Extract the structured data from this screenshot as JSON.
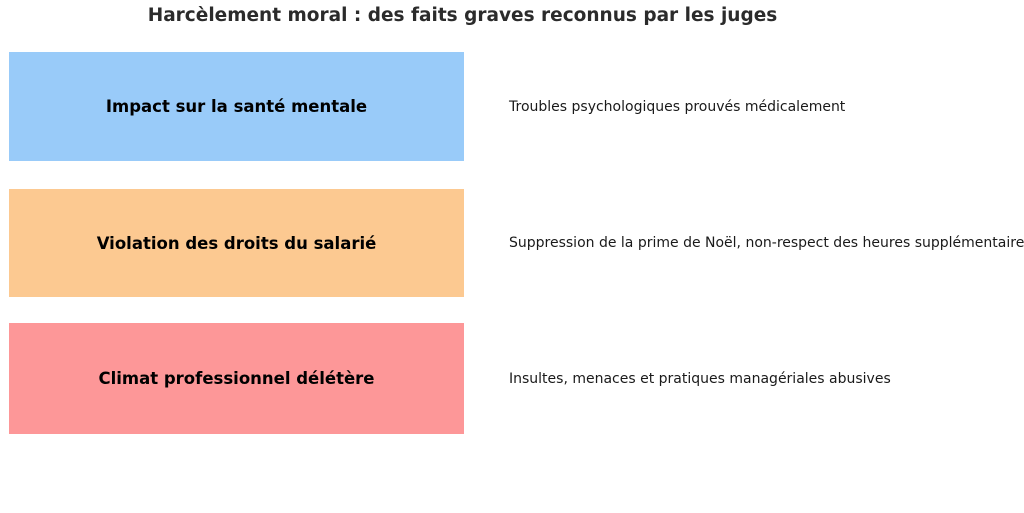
{
  "title": "Harcèlement moral : des faits graves reconnus par les juges",
  "rows": [
    {
      "label": "Impact sur la santé mentale",
      "description": "Troubles psychologiques prouvés médicalement",
      "color": "#99cbf9"
    },
    {
      "label": "Violation des droits du salarié",
      "description": "Suppression de la prime de Noël, non-respect des heures supplémentaires",
      "color": "#fcc991"
    },
    {
      "label": "Climat professionnel délétère",
      "description": "Insultes, menaces et pratiques managériales abusives",
      "color": "#fd9798"
    }
  ],
  "colors": {
    "background": "#ffffff",
    "title_text": "#2b2b2b",
    "label_text": "#000000",
    "description_text": "#1a1a1a"
  }
}
